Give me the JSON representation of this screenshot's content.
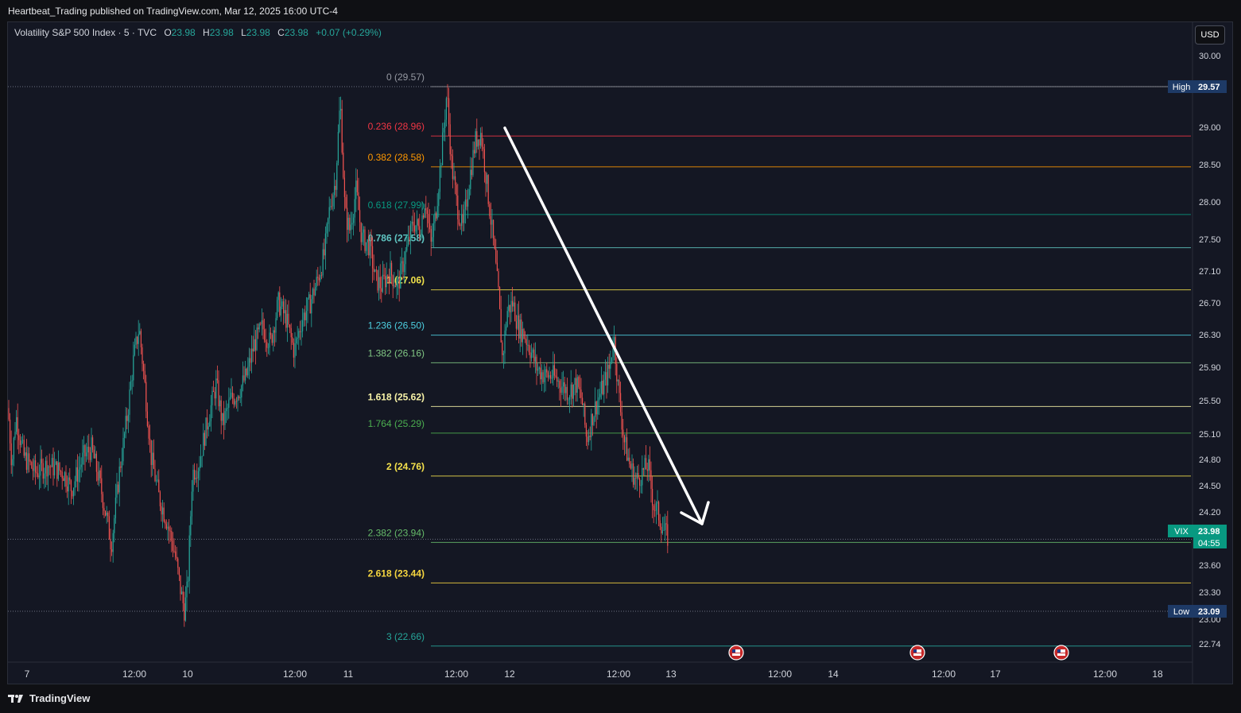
{
  "header": {
    "published_by": "Heartbeat_Trading published on TradingView.com, Mar 12, 2025 16:00 UTC-4"
  },
  "legend": {
    "symbol": "Volatility S&P 500 Index · 5 · TVC",
    "o_key": "O",
    "open": "23.98",
    "h_key": "H",
    "high": "23.98",
    "l_key": "L",
    "low": "23.98",
    "c_key": "C",
    "close": "23.98",
    "change": "+0.07 (+0.29%)"
  },
  "currency_button": "USD",
  "footer": {
    "brand": "TradingView"
  },
  "colors": {
    "up": "#26a69a",
    "down": "#ef5350",
    "background": "#141723",
    "fib_0": "#9598a1",
    "fib_0236": "#f23645",
    "fib_0382": "#ff9800",
    "fib_0618": "#089981",
    "fib_0786": "#5fc5c2",
    "fib_1": "#f0e14a",
    "fib_1236": "#4dd0e1",
    "fib_1382": "#81c784",
    "fib_1618": "#f7f2a7",
    "fib_1764": "#4caf50",
    "fib_2": "#f5e14c",
    "fib_2382": "#66bb6a",
    "fib_2618": "#f5d53f",
    "fib_3": "#26a69a"
  },
  "chart_data": {
    "type": "candlestick",
    "symbol": "VIX",
    "timeframe": "5",
    "y_ticks": [
      "30.00",
      "29.00",
      "28.50",
      "28.00",
      "27.50",
      "27.10",
      "26.70",
      "26.30",
      "25.90",
      "25.50",
      "25.10",
      "24.80",
      "24.50",
      "24.20",
      "23.60",
      "23.30",
      "23.00",
      "22.74"
    ],
    "x_ticks": [
      "7",
      "12:00",
      "10",
      "12:00",
      "11",
      "12:00",
      "12",
      "12:00",
      "13",
      "12:00",
      "14",
      "12:00",
      "17",
      "12:00",
      "18"
    ],
    "price_path": [
      [
        0,
        25.6
      ],
      [
        5,
        24.9
      ],
      [
        10,
        25.5
      ],
      [
        20,
        25.0
      ],
      [
        35,
        24.8
      ],
      [
        50,
        24.9
      ],
      [
        70,
        24.8
      ],
      [
        80,
        24.6
      ],
      [
        95,
        25.0
      ],
      [
        105,
        25.1
      ],
      [
        115,
        24.7
      ],
      [
        125,
        24.2
      ],
      [
        130,
        23.9
      ],
      [
        140,
        24.8
      ],
      [
        150,
        25.5
      ],
      [
        158,
        26.2
      ],
      [
        165,
        26.6
      ],
      [
        172,
        25.9
      ],
      [
        180,
        25.0
      ],
      [
        190,
        24.5
      ],
      [
        200,
        24.2
      ],
      [
        210,
        23.8
      ],
      [
        218,
        23.3
      ],
      [
        222,
        23.1
      ],
      [
        226,
        23.4
      ],
      [
        232,
        24.8
      ],
      [
        240,
        24.9
      ],
      [
        248,
        25.3
      ],
      [
        255,
        25.6
      ],
      [
        262,
        25.9
      ],
      [
        270,
        25.4
      ],
      [
        280,
        25.7
      ],
      [
        290,
        25.8
      ],
      [
        300,
        26.0
      ],
      [
        310,
        26.4
      ],
      [
        320,
        26.6
      ],
      [
        330,
        26.4
      ],
      [
        340,
        26.9
      ],
      [
        350,
        26.7
      ],
      [
        360,
        26.3
      ],
      [
        370,
        26.7
      ],
      [
        380,
        26.9
      ],
      [
        390,
        27.2
      ],
      [
        398,
        27.5
      ],
      [
        405,
        28.1
      ],
      [
        412,
        28.4
      ],
      [
        418,
        29.4
      ],
      [
        424,
        28.0
      ],
      [
        430,
        27.8
      ],
      [
        438,
        28.3
      ],
      [
        445,
        27.7
      ],
      [
        455,
        27.6
      ],
      [
        462,
        27.2
      ],
      [
        470,
        27.1
      ],
      [
        480,
        27.3
      ],
      [
        490,
        27.1
      ],
      [
        500,
        27.5
      ],
      [
        510,
        27.9
      ],
      [
        518,
        27.8
      ],
      [
        525,
        28.2
      ],
      [
        532,
        27.6
      ],
      [
        538,
        28.0
      ],
      [
        545,
        28.7
      ],
      [
        552,
        29.5
      ],
      [
        558,
        28.6
      ],
      [
        565,
        28.1
      ],
      [
        572,
        27.8
      ],
      [
        580,
        28.4
      ],
      [
        588,
        28.9
      ],
      [
        595,
        29.0
      ],
      [
        602,
        28.4
      ],
      [
        610,
        27.7
      ],
      [
        617,
        27.0
      ],
      [
        622,
        26.2
      ],
      [
        628,
        26.8
      ],
      [
        635,
        26.9
      ],
      [
        642,
        26.6
      ],
      [
        650,
        26.5
      ],
      [
        658,
        26.3
      ],
      [
        665,
        26.1
      ],
      [
        675,
        26.0
      ],
      [
        685,
        26.0
      ],
      [
        695,
        25.9
      ],
      [
        705,
        25.8
      ],
      [
        715,
        25.9
      ],
      [
        722,
        25.7
      ],
      [
        728,
        25.2
      ],
      [
        735,
        25.5
      ],
      [
        742,
        25.7
      ],
      [
        750,
        25.9
      ],
      [
        757,
        26.1
      ],
      [
        762,
        26.5
      ],
      [
        768,
        25.8
      ],
      [
        775,
        25.2
      ],
      [
        782,
        24.9
      ],
      [
        790,
        24.7
      ],
      [
        798,
        24.8
      ],
      [
        805,
        24.9
      ],
      [
        812,
        24.4
      ],
      [
        818,
        24.3
      ],
      [
        824,
        24.1
      ],
      [
        830,
        24.0
      ],
      [
        836,
        24.2
      ],
      [
        840,
        23.98
      ]
    ],
    "fib_retracement": [
      {
        "label": "0 (29.57)",
        "ratio": "0",
        "value": 29.57,
        "color_key": "fib_0"
      },
      {
        "label": "0.236 (28.96)",
        "ratio": "0.236",
        "value": 28.96,
        "color_key": "fib_0236"
      },
      {
        "label": "0.382 (28.58)",
        "ratio": "0.382",
        "value": 28.58,
        "color_key": "fib_0382"
      },
      {
        "label": "0.618 (27.99)",
        "ratio": "0.618",
        "value": 27.99,
        "color_key": "fib_0618"
      },
      {
        "label": "0.786 (27.58)",
        "ratio": "0.786",
        "value": 27.58,
        "color_key": "fib_0786"
      },
      {
        "label": "1 (27.06)",
        "ratio": "1",
        "value": 27.06,
        "color_key": "fib_1"
      },
      {
        "label": "1.236 (26.50)",
        "ratio": "1.236",
        "value": 26.5,
        "color_key": "fib_1236"
      },
      {
        "label": "1.382 (26.16)",
        "ratio": "1.382",
        "value": 26.16,
        "color_key": "fib_1382"
      },
      {
        "label": "1.618 (25.62)",
        "ratio": "1.618",
        "value": 25.62,
        "color_key": "fib_1618"
      },
      {
        "label": "1.764 (25.29)",
        "ratio": "1.764",
        "value": 25.29,
        "color_key": "fib_1764"
      },
      {
        "label": "2 (24.76)",
        "ratio": "2",
        "value": 24.76,
        "color_key": "fib_2"
      },
      {
        "label": "2.382 (23.94)",
        "ratio": "2.382",
        "value": 23.94,
        "color_key": "fib_2382"
      },
      {
        "label": "2.618 (23.44)",
        "ratio": "2.618",
        "value": 23.44,
        "color_key": "fib_2618"
      },
      {
        "label": "3 (22.66)",
        "ratio": "3",
        "value": 22.66,
        "color_key": "fib_3"
      }
    ],
    "high_marker": {
      "label": "High",
      "value": "29.57"
    },
    "low_marker": {
      "label": "Low",
      "value": "23.09"
    },
    "last_price": {
      "label": "VIX",
      "value": "23.98",
      "countdown": "04:55"
    },
    "annotation": "arrow pointing down toward 2.382 level",
    "event_icons": [
      "us-flag-icon",
      "us-flag-icon",
      "us-flag-icon"
    ]
  }
}
